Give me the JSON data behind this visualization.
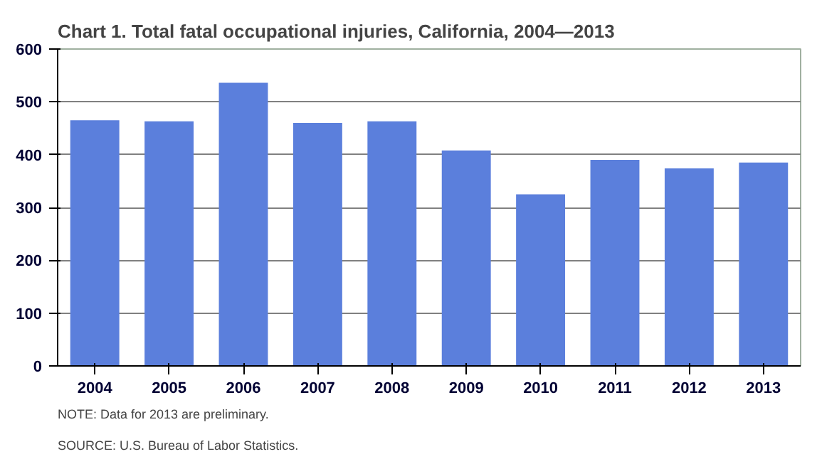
{
  "chart_data": {
    "type": "bar",
    "title": "Chart 1. Total fatal occupational injuries, California, 2004—2013",
    "categories": [
      "2004",
      "2005",
      "2006",
      "2007",
      "2008",
      "2009",
      "2010",
      "2011",
      "2012",
      "2013"
    ],
    "values": [
      465,
      463,
      536,
      460,
      463,
      408,
      325,
      390,
      374,
      385
    ],
    "color": "#5b7fdc",
    "ylim": [
      0,
      600
    ],
    "yticks": [
      0,
      100,
      200,
      300,
      400,
      500,
      600
    ],
    "grid": "y",
    "annotations": [
      "NOTE: Data for 2013 are preliminary.",
      "SOURCE: U.S. Bureau  of Labor Statistics."
    ]
  }
}
